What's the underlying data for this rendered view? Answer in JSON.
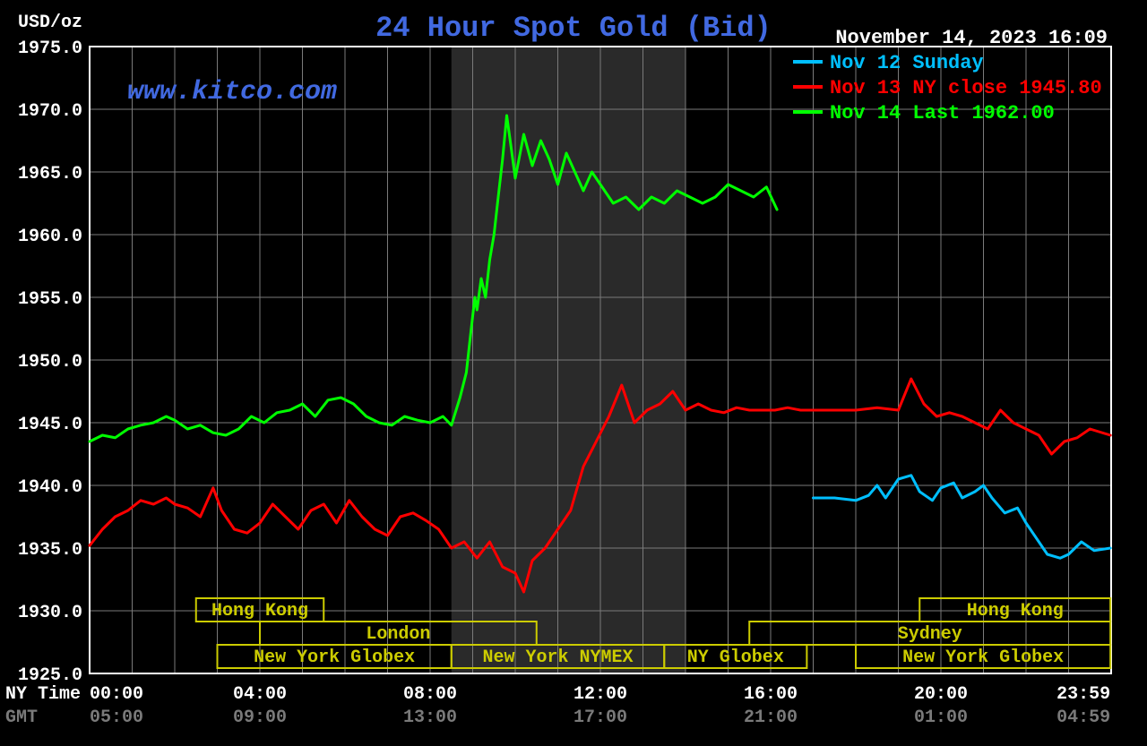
{
  "chart": {
    "type": "line",
    "title": "24 Hour Spot Gold (Bid)",
    "title_color": "#4169e1",
    "title_fontsize": 32,
    "watermark": "www.kitco.com",
    "watermark_color": "#4169e1",
    "watermark_fontsize": 30,
    "timestamp": "November 14, 2023 16:09",
    "timestamp_color": "#ffffff",
    "y_axis_label": "USD/oz",
    "y_axis_label_color": "#ffffff",
    "background_color": "#000000",
    "plot_background": "#000000",
    "grid_color": "#7a7a7a",
    "grid_width": 1,
    "axis_color": "#ffffff",
    "shaded_band": {
      "x_start": 8.5,
      "x_end": 14.0,
      "color": "#2a2a2a"
    },
    "ylim": [
      1925.0,
      1975.0
    ],
    "y_ticks": [
      1925.0,
      1930.0,
      1935.0,
      1940.0,
      1945.0,
      1950.0,
      1955.0,
      1960.0,
      1965.0,
      1970.0,
      1975.0
    ],
    "y_tick_labels": [
      "1925.0",
      "1930.0",
      "1935.0",
      "1940.0",
      "1945.0",
      "1950.0",
      "1955.0",
      "1960.0",
      "1965.0",
      "1970.0",
      "1975.0"
    ],
    "y_tick_color": "#ffffff",
    "xlim": [
      0,
      24
    ],
    "x_ticks": [
      0,
      4,
      8,
      12,
      16,
      20,
      23.983
    ],
    "x_tick_labels_ny": [
      "00:00",
      "04:00",
      "08:00",
      "12:00",
      "16:00",
      "20:00",
      "23:59"
    ],
    "x_tick_labels_gmt": [
      "05:00",
      "09:00",
      "13:00",
      "17:00",
      "21:00",
      "01:00",
      "04:59"
    ],
    "x_axis_row1_label": "NY Time",
    "x_axis_row1_color": "#ffffff",
    "x_axis_row2_label": "GMT",
    "x_axis_row2_color": "#7a7a7a",
    "tick_fontsize": 20,
    "line_width": 3,
    "legend": {
      "fontsize": 22,
      "items": [
        {
          "label": "Nov 12 Sunday",
          "color": "#00bfff",
          "dash_x": [
            885,
            918
          ]
        },
        {
          "label": "Nov 13 NY close 1945.80",
          "color": "#ff0000",
          "dash_x": [
            885,
            918
          ]
        },
        {
          "label": "Nov 14 Last 1962.00",
          "color": "#00ff00",
          "dash_x": [
            885,
            918
          ]
        }
      ]
    },
    "markets": {
      "color": "#cccc00",
      "text_color": "#cccc00",
      "fontsize": 20,
      "boxes": [
        {
          "label": "Hong Kong",
          "x_start": 2.5,
          "x_end": 5.5,
          "row": 0
        },
        {
          "label": "London",
          "x_start": 4.0,
          "x_end": 10.5,
          "row": 1
        },
        {
          "label": "New York Globex",
          "x_start": 3.0,
          "x_end": 8.5,
          "row": 2
        },
        {
          "label": "New York NYMEX",
          "x_start": 8.5,
          "x_end": 13.5,
          "row": 2
        },
        {
          "label": "NY Globex",
          "x_start": 13.5,
          "x_end": 16.85,
          "row": 2
        },
        {
          "label": "Sydney",
          "x_start": 15.5,
          "x_end": 23.983,
          "row": 1
        },
        {
          "label": "Hong Kong",
          "x_start": 19.5,
          "x_end": 23.983,
          "row": 0
        },
        {
          "label": "New York Globex",
          "x_start": 18.0,
          "x_end": 23.983,
          "row": 2
        }
      ]
    },
    "series": [
      {
        "name": "nov12",
        "color": "#00bfff",
        "points": [
          [
            17.0,
            1939.0
          ],
          [
            17.2,
            1939.0
          ],
          [
            17.5,
            1939.0
          ],
          [
            18.0,
            1938.8
          ],
          [
            18.3,
            1939.2
          ],
          [
            18.5,
            1940.0
          ],
          [
            18.7,
            1939.0
          ],
          [
            19.0,
            1940.5
          ],
          [
            19.3,
            1940.8
          ],
          [
            19.5,
            1939.5
          ],
          [
            19.8,
            1938.8
          ],
          [
            20.0,
            1939.8
          ],
          [
            20.3,
            1940.2
          ],
          [
            20.5,
            1939.0
          ],
          [
            20.8,
            1939.5
          ],
          [
            21.0,
            1940.0
          ],
          [
            21.2,
            1939.0
          ],
          [
            21.5,
            1937.8
          ],
          [
            21.8,
            1938.2
          ],
          [
            22.0,
            1937.0
          ],
          [
            22.3,
            1935.5
          ],
          [
            22.5,
            1934.5
          ],
          [
            22.8,
            1934.2
          ],
          [
            23.0,
            1934.5
          ],
          [
            23.3,
            1935.5
          ],
          [
            23.6,
            1934.8
          ],
          [
            23.983,
            1935.0
          ]
        ]
      },
      {
        "name": "nov13",
        "color": "#ff0000",
        "points": [
          [
            0.0,
            1935.2
          ],
          [
            0.3,
            1936.5
          ],
          [
            0.6,
            1937.5
          ],
          [
            0.9,
            1938.0
          ],
          [
            1.2,
            1938.8
          ],
          [
            1.5,
            1938.5
          ],
          [
            1.8,
            1939.0
          ],
          [
            2.0,
            1938.5
          ],
          [
            2.3,
            1938.2
          ],
          [
            2.6,
            1937.5
          ],
          [
            2.9,
            1939.8
          ],
          [
            3.1,
            1938.0
          ],
          [
            3.4,
            1936.5
          ],
          [
            3.7,
            1936.2
          ],
          [
            4.0,
            1937.0
          ],
          [
            4.3,
            1938.5
          ],
          [
            4.6,
            1937.5
          ],
          [
            4.9,
            1936.5
          ],
          [
            5.2,
            1938.0
          ],
          [
            5.5,
            1938.5
          ],
          [
            5.8,
            1937.0
          ],
          [
            6.1,
            1938.8
          ],
          [
            6.4,
            1937.5
          ],
          [
            6.7,
            1936.5
          ],
          [
            7.0,
            1936.0
          ],
          [
            7.3,
            1937.5
          ],
          [
            7.6,
            1937.8
          ],
          [
            7.9,
            1937.2
          ],
          [
            8.2,
            1936.5
          ],
          [
            8.5,
            1935.0
          ],
          [
            8.8,
            1935.5
          ],
          [
            9.1,
            1934.2
          ],
          [
            9.4,
            1935.5
          ],
          [
            9.7,
            1933.5
          ],
          [
            10.0,
            1933.0
          ],
          [
            10.2,
            1931.5
          ],
          [
            10.4,
            1934.0
          ],
          [
            10.7,
            1935.0
          ],
          [
            11.0,
            1936.5
          ],
          [
            11.3,
            1938.0
          ],
          [
            11.6,
            1941.5
          ],
          [
            11.9,
            1943.5
          ],
          [
            12.2,
            1945.5
          ],
          [
            12.5,
            1948.0
          ],
          [
            12.8,
            1945.0
          ],
          [
            13.1,
            1946.0
          ],
          [
            13.4,
            1946.5
          ],
          [
            13.7,
            1947.5
          ],
          [
            14.0,
            1946.0
          ],
          [
            14.3,
            1946.5
          ],
          [
            14.6,
            1946.0
          ],
          [
            14.9,
            1945.8
          ],
          [
            15.2,
            1946.2
          ],
          [
            15.5,
            1946.0
          ],
          [
            15.8,
            1946.0
          ],
          [
            16.1,
            1946.0
          ],
          [
            16.4,
            1946.2
          ],
          [
            16.7,
            1946.0
          ],
          [
            17.0,
            1946.0
          ],
          [
            17.5,
            1946.0
          ],
          [
            18.0,
            1946.0
          ],
          [
            18.5,
            1946.2
          ],
          [
            19.0,
            1946.0
          ],
          [
            19.3,
            1948.5
          ],
          [
            19.6,
            1946.5
          ],
          [
            19.9,
            1945.5
          ],
          [
            20.2,
            1945.8
          ],
          [
            20.5,
            1945.5
          ],
          [
            20.8,
            1945.0
          ],
          [
            21.1,
            1944.5
          ],
          [
            21.4,
            1946.0
          ],
          [
            21.7,
            1945.0
          ],
          [
            22.0,
            1944.5
          ],
          [
            22.3,
            1944.0
          ],
          [
            22.6,
            1942.5
          ],
          [
            22.9,
            1943.5
          ],
          [
            23.2,
            1943.8
          ],
          [
            23.5,
            1944.5
          ],
          [
            23.983,
            1944.0
          ]
        ]
      },
      {
        "name": "nov14",
        "color": "#00ff00",
        "points": [
          [
            0.0,
            1943.5
          ],
          [
            0.3,
            1944.0
          ],
          [
            0.6,
            1943.8
          ],
          [
            0.9,
            1944.5
          ],
          [
            1.2,
            1944.8
          ],
          [
            1.5,
            1945.0
          ],
          [
            1.8,
            1945.5
          ],
          [
            2.0,
            1945.2
          ],
          [
            2.3,
            1944.5
          ],
          [
            2.6,
            1944.8
          ],
          [
            2.9,
            1944.2
          ],
          [
            3.2,
            1944.0
          ],
          [
            3.5,
            1944.5
          ],
          [
            3.8,
            1945.5
          ],
          [
            4.1,
            1945.0
          ],
          [
            4.4,
            1945.8
          ],
          [
            4.7,
            1946.0
          ],
          [
            5.0,
            1946.5
          ],
          [
            5.3,
            1945.5
          ],
          [
            5.6,
            1946.8
          ],
          [
            5.9,
            1947.0
          ],
          [
            6.2,
            1946.5
          ],
          [
            6.5,
            1945.5
          ],
          [
            6.8,
            1945.0
          ],
          [
            7.1,
            1944.8
          ],
          [
            7.4,
            1945.5
          ],
          [
            7.7,
            1945.2
          ],
          [
            8.0,
            1945.0
          ],
          [
            8.3,
            1945.5
          ],
          [
            8.5,
            1944.8
          ],
          [
            8.7,
            1947.0
          ],
          [
            8.85,
            1949.0
          ],
          [
            8.95,
            1952.0
          ],
          [
            9.05,
            1955.0
          ],
          [
            9.1,
            1954.0
          ],
          [
            9.2,
            1956.5
          ],
          [
            9.3,
            1955.0
          ],
          [
            9.4,
            1958.0
          ],
          [
            9.5,
            1960.0
          ],
          [
            9.6,
            1963.0
          ],
          [
            9.7,
            1966.0
          ],
          [
            9.8,
            1969.5
          ],
          [
            9.9,
            1967.0
          ],
          [
            10.0,
            1964.5
          ],
          [
            10.2,
            1968.0
          ],
          [
            10.4,
            1965.5
          ],
          [
            10.6,
            1967.5
          ],
          [
            10.8,
            1966.0
          ],
          [
            11.0,
            1964.0
          ],
          [
            11.2,
            1966.5
          ],
          [
            11.4,
            1965.0
          ],
          [
            11.6,
            1963.5
          ],
          [
            11.8,
            1965.0
          ],
          [
            12.0,
            1964.0
          ],
          [
            12.3,
            1962.5
          ],
          [
            12.6,
            1963.0
          ],
          [
            12.9,
            1962.0
          ],
          [
            13.2,
            1963.0
          ],
          [
            13.5,
            1962.5
          ],
          [
            13.8,
            1963.5
          ],
          [
            14.1,
            1963.0
          ],
          [
            14.4,
            1962.5
          ],
          [
            14.7,
            1963.0
          ],
          [
            15.0,
            1964.0
          ],
          [
            15.3,
            1963.5
          ],
          [
            15.6,
            1963.0
          ],
          [
            15.9,
            1963.8
          ],
          [
            16.15,
            1962.0
          ]
        ]
      }
    ]
  }
}
